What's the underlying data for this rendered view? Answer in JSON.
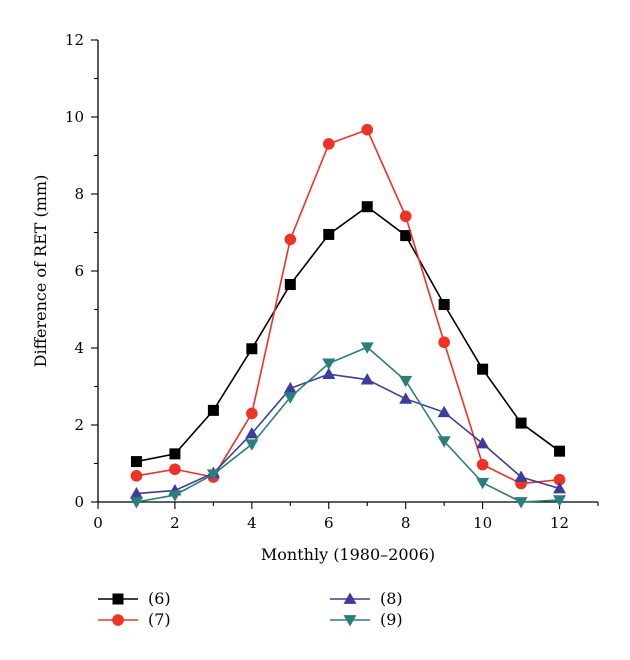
{
  "chart_data": {
    "type": "line",
    "title": "",
    "xlabel": "Monthly (1980–2006)",
    "ylabel": "Difference of RET (mm)",
    "xlim": [
      0,
      13
    ],
    "ylim": [
      0,
      12
    ],
    "xticks": [
      0,
      2,
      4,
      6,
      8,
      10,
      12
    ],
    "yticks": [
      0,
      2,
      4,
      6,
      8,
      10,
      12
    ],
    "grid": false,
    "legend_position": "bottom",
    "x": [
      1,
      2,
      3,
      4,
      5,
      6,
      7,
      8,
      9,
      10,
      11,
      12
    ],
    "series": [
      {
        "name": "(6)",
        "color": "#000000",
        "marker": "square",
        "values": [
          1.05,
          1.25,
          2.38,
          3.98,
          5.65,
          6.95,
          7.67,
          6.92,
          5.13,
          3.45,
          2.05,
          1.32
        ]
      },
      {
        "name": "(7)",
        "color": "#ee3224",
        "marker": "circle",
        "values": [
          0.68,
          0.85,
          0.65,
          2.3,
          6.82,
          9.3,
          9.67,
          7.42,
          4.15,
          0.97,
          0.48,
          0.58
        ]
      },
      {
        "name": "(8)",
        "color": "#3d3d9e",
        "marker": "triangle-up",
        "values": [
          0.22,
          0.3,
          0.75,
          1.78,
          2.95,
          3.32,
          3.18,
          2.68,
          2.33,
          1.52,
          0.65,
          0.35
        ]
      },
      {
        "name": "(9)",
        "color": "#2a7f7a",
        "marker": "triangle-down",
        "values": [
          0.0,
          0.18,
          0.72,
          1.5,
          2.72,
          3.6,
          4.02,
          3.15,
          1.58,
          0.5,
          0.0,
          0.05
        ]
      }
    ]
  }
}
